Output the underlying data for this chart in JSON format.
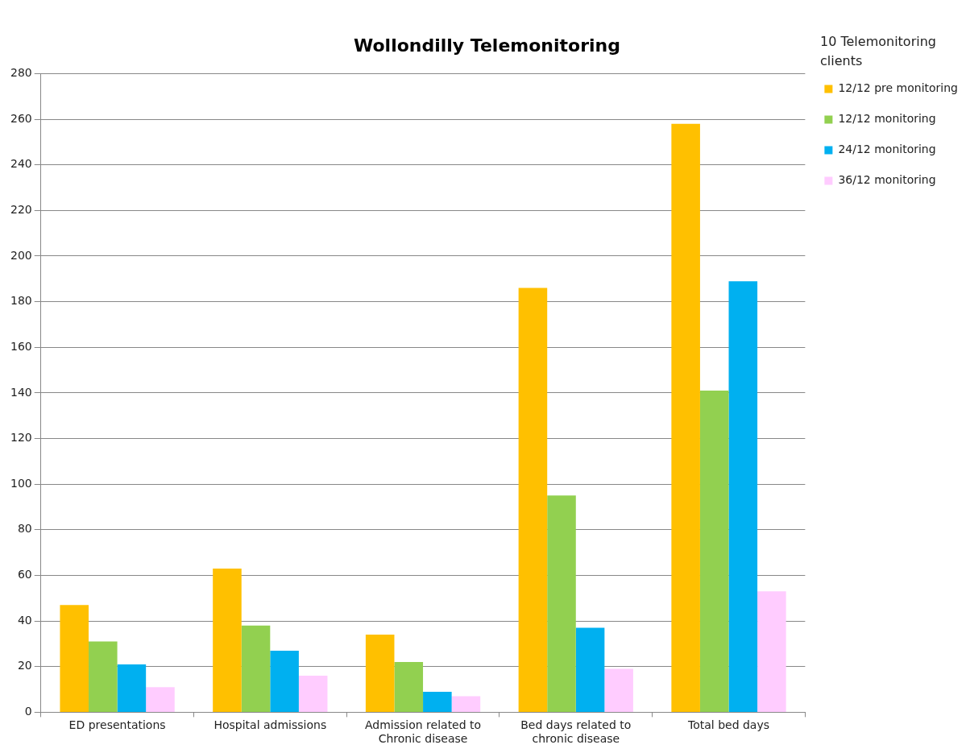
{
  "chart_data": {
    "type": "bar",
    "title": "Wollondilly Telemonitoring",
    "legend_title": "10 Telemonitoring clients",
    "categories": [
      "ED presentations",
      "Hospital admissions",
      "Admission related to Chronic disease",
      "Bed days related to chronic disease",
      "Total bed days"
    ],
    "series": [
      {
        "name": "12/12 pre monitoring",
        "color": "#ffc000",
        "values": [
          47,
          63,
          34,
          186,
          258
        ]
      },
      {
        "name": "12/12 monitoring",
        "color": "#92d050",
        "values": [
          31,
          38,
          22,
          95,
          141
        ]
      },
      {
        "name": "24/12 monitoring",
        "color": "#00b0f0",
        "values": [
          21,
          27,
          9,
          37,
          189
        ]
      },
      {
        "name": "36/12 monitoring",
        "color": "#ffccff",
        "values": [
          11,
          16,
          7,
          19,
          53
        ]
      }
    ],
    "ylim": [
      0,
      280
    ],
    "yticks": [
      0,
      20,
      40,
      60,
      80,
      100,
      120,
      140,
      160,
      180,
      200,
      220,
      240,
      260,
      280
    ],
    "grid": "y",
    "legend": "top right"
  }
}
